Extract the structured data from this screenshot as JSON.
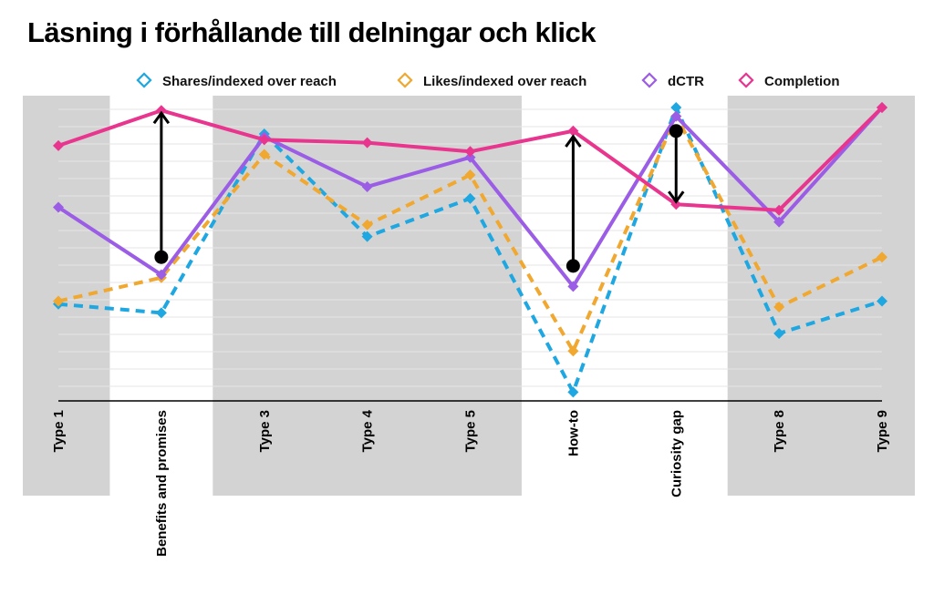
{
  "chart_data": {
    "type": "line",
    "title": "Läsning i förhållande till delningar och klick",
    "xlabel": "",
    "ylabel": "",
    "ylim": [
      0,
      100
    ],
    "grid": true,
    "legend_position": "top",
    "categories": [
      "Type 1",
      "Benefits and promises",
      "Type 3",
      "Type 4",
      "Type 5",
      "How-to",
      "Curiosity gap",
      "Type 8",
      "Type 9"
    ],
    "shaded_categories": [
      0,
      2,
      3,
      4,
      7,
      8
    ],
    "series": [
      {
        "name": "Shares/indexed over reach",
        "color": "#1ea7e0",
        "dashed": true,
        "values": [
          33,
          30,
          91,
          56,
          69,
          3,
          100,
          23,
          34
        ]
      },
      {
        "name": "Likes/indexed over reach",
        "color": "#f0a830",
        "dashed": true,
        "values": [
          34,
          42,
          84,
          60,
          77,
          17,
          97,
          32,
          49
        ]
      },
      {
        "name": "dCTR",
        "color": "#9b5de5",
        "dashed": false,
        "values": [
          66,
          43,
          90,
          73,
          83,
          39,
          97,
          61,
          100
        ]
      },
      {
        "name": "Completion",
        "color": "#e8368f",
        "dashed": false,
        "values": [
          87,
          99,
          89,
          88,
          85,
          92,
          67,
          65,
          100
        ]
      }
    ],
    "arrows": [
      {
        "category_index": 1,
        "from": 49,
        "to": 99
      },
      {
        "category_index": 5,
        "from": 46,
        "to": 91
      },
      {
        "category_index": 6,
        "from": 92,
        "to": 67
      }
    ]
  }
}
